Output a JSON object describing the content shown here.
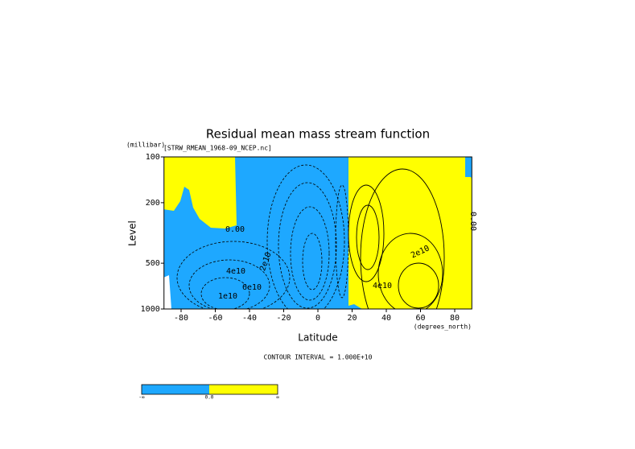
{
  "chart_data": {
    "type": "contour",
    "title": "Residual mean mass stream function",
    "subtitle": "[STRW_RMEAN_1968-09_NCEP.nc]",
    "y_unit": "(millibar)",
    "y_label": "Level",
    "x_label": "Latitude",
    "x_unit": "(degrees_north)",
    "contour_interval": "CONTOUR INTERVAL = 1.000E+10",
    "xlim": [
      -90,
      90
    ],
    "xticks": [
      -80,
      -60,
      -40,
      -20,
      0,
      20,
      40,
      60,
      80
    ],
    "ylim": [
      1000,
      100
    ],
    "yticks": [
      100,
      200,
      500,
      1000
    ],
    "log_scale_y": true,
    "colors": {
      "negative": "#1ea8ff",
      "positive": "#ffff00"
    },
    "contour_labels": [
      "0.00",
      "2e10",
      "4e10",
      "6e10",
      "1e10",
      "2e10",
      "4e10",
      "0.00"
    ],
    "colorbar_labels": [
      "-∞",
      "0.0",
      "∞"
    ]
  }
}
